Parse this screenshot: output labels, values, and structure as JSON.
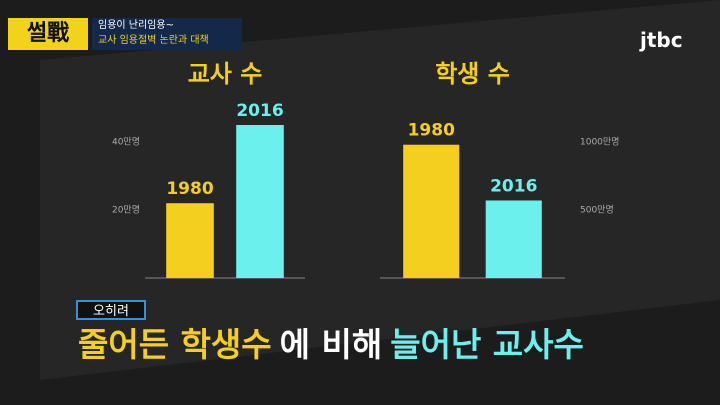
{
  "header": {
    "logo": "썰戰",
    "topic": "임용이 난리임용~",
    "subtitle": "교사 임용절벽 논란과 대책",
    "channel": "jtbc"
  },
  "chart_data": [
    {
      "type": "bar",
      "title": "교사 수",
      "categories": [
        "1980",
        "2016"
      ],
      "values": [
        22,
        45
      ],
      "colors": [
        "#f5cf1f",
        "#6cf0ee"
      ],
      "ylim": [
        0,
        50
      ],
      "yticks": [
        {
          "value": 20,
          "label": "20만명"
        },
        {
          "value": 40,
          "label": "40만명"
        }
      ]
    },
    {
      "type": "bar",
      "title": "학생 수",
      "categories": [
        "1980",
        "2016"
      ],
      "values": [
        980,
        570
      ],
      "colors": [
        "#f5cf1f",
        "#6cf0ee"
      ],
      "ylim": [
        0,
        1250
      ],
      "yticks": [
        {
          "value": 500,
          "label": "500만명"
        },
        {
          "value": 1000,
          "label": "1000만명"
        }
      ]
    }
  ],
  "caption": {
    "tag": "오히려",
    "segments": [
      {
        "text": "줄어든 학생수",
        "color": "#f5cf1f"
      },
      {
        "text": "에 비해",
        "color": "#ffffff"
      },
      {
        "text": "늘어난 교사수",
        "color": "#6cf0ee"
      }
    ]
  }
}
